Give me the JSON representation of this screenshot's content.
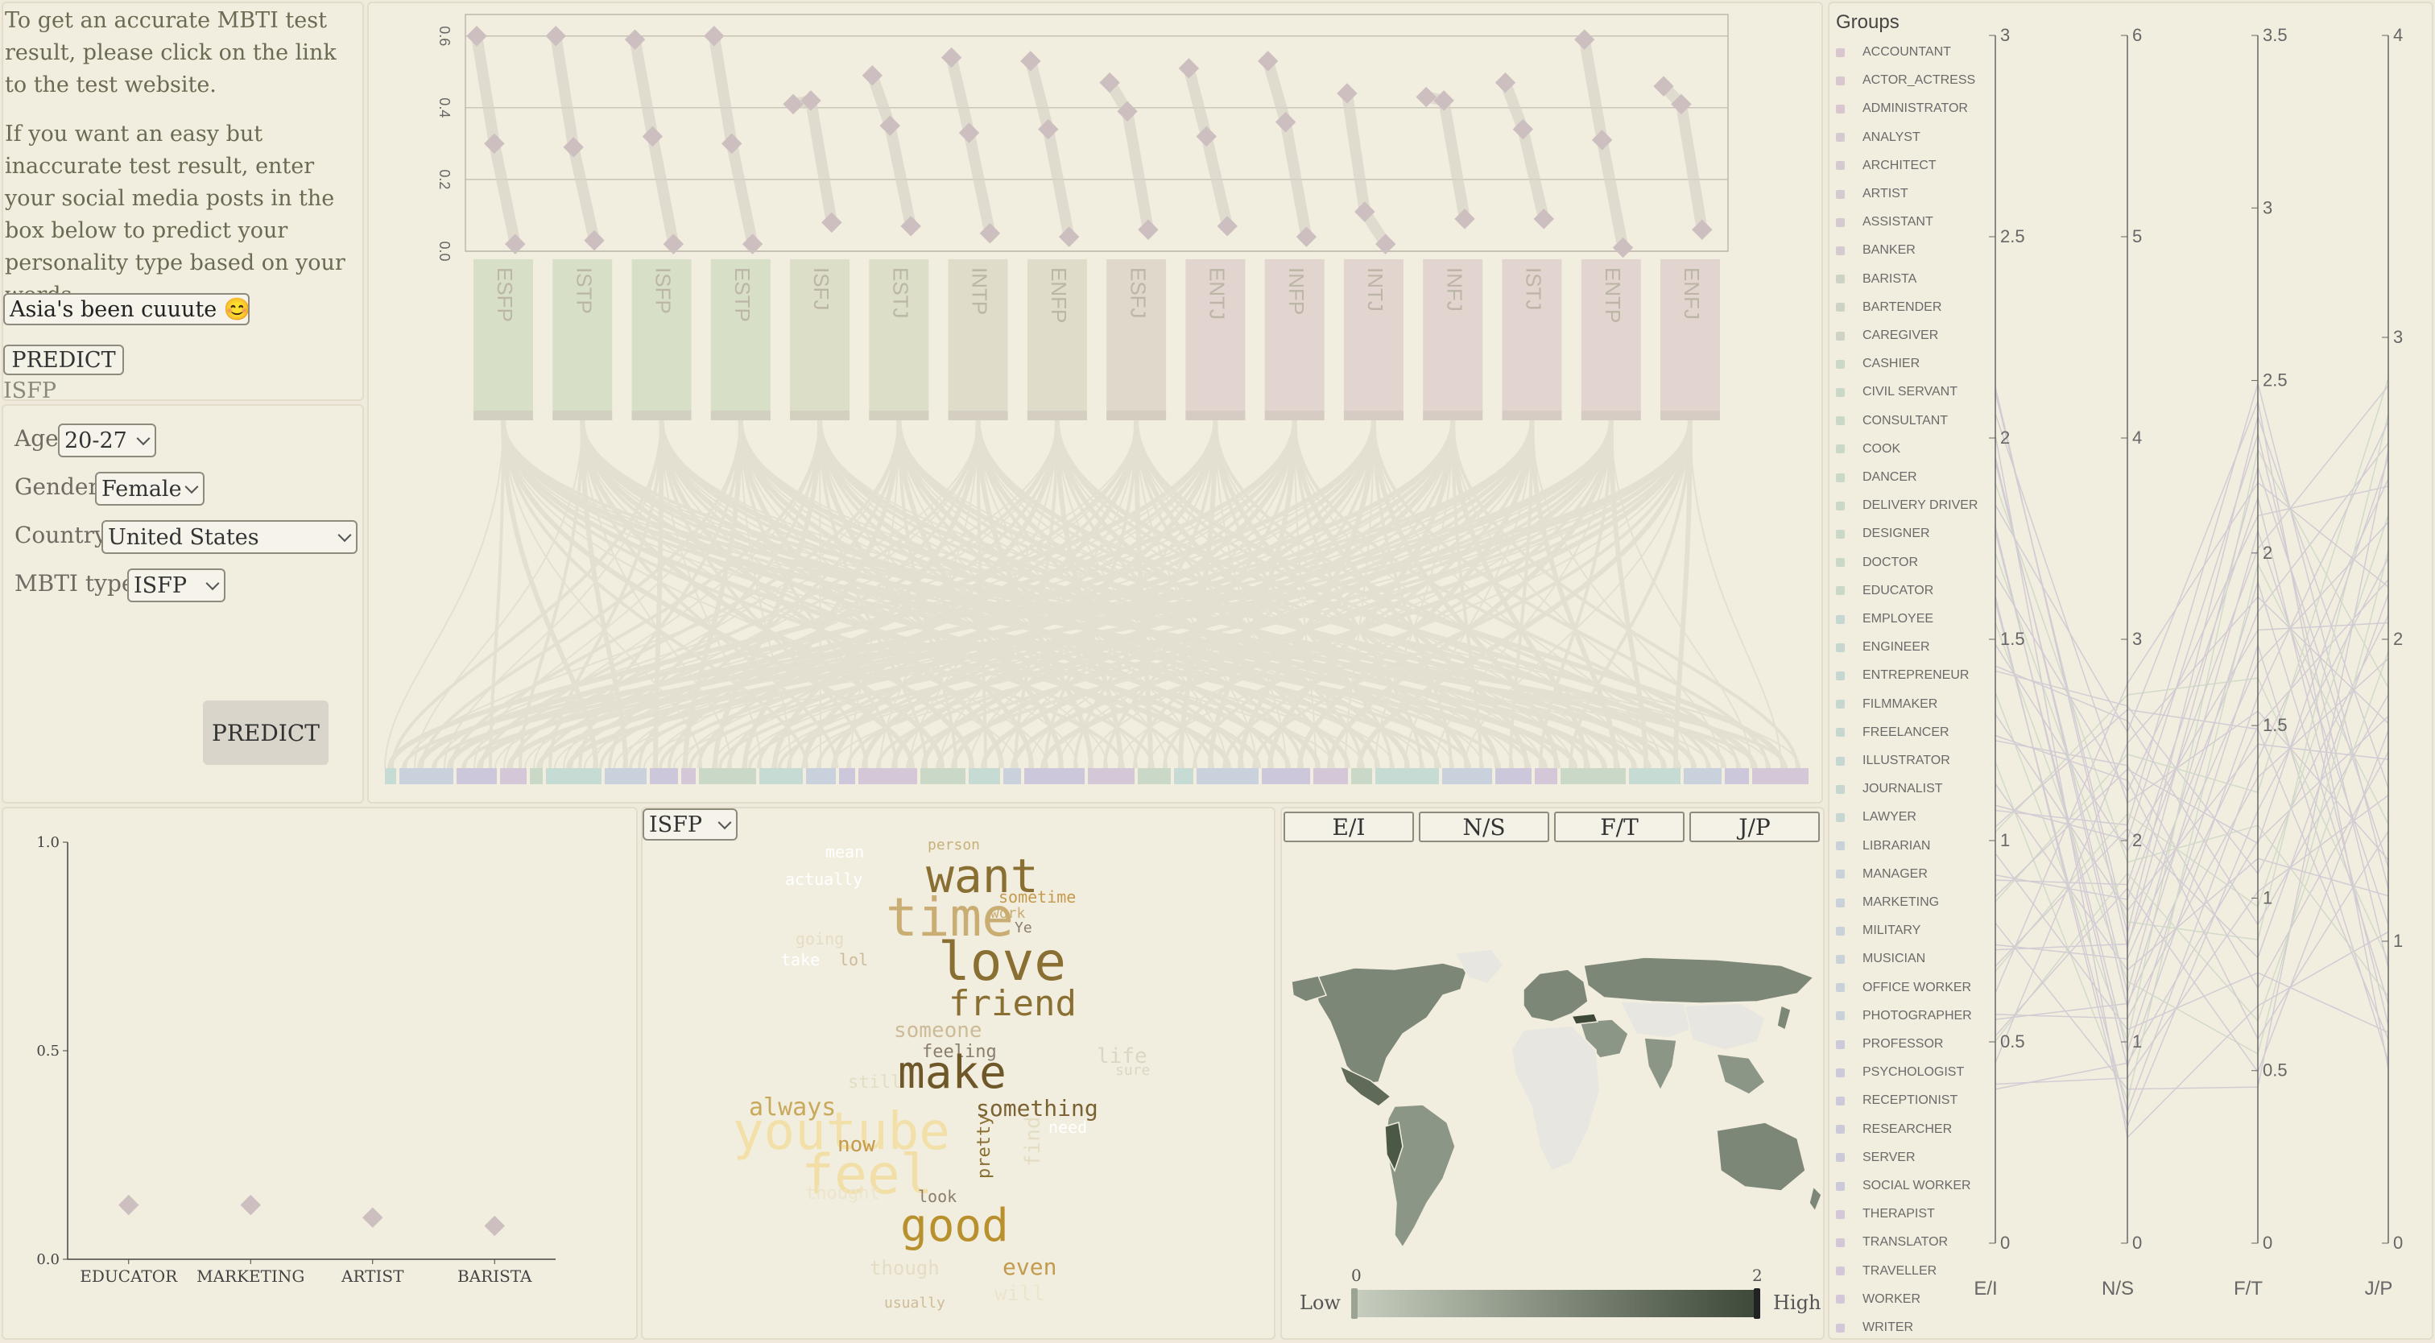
{
  "left_top": {
    "intro1": "To get an accurate MBTI test result,  please click on the link to the test website.",
    "intro2": "If you want an easy but inaccurate test result, enter your social media posts in the box below to predict your personality type based on your words.",
    "post_value": "Asia's been cuuute 😊 se",
    "predict_label": "PREDICT",
    "result": "ISFP"
  },
  "form": {
    "age_label": "Age",
    "age_value": "20-27",
    "gender_label": "Gender",
    "gender_value": "Female",
    "country_label": "Country",
    "country_value": "United States",
    "mbti_label": "MBTI type",
    "mbti_value": "ISFP",
    "predict_label": "PREDICT"
  },
  "sankey": {
    "y_ticks": [
      "0.0",
      "0.2",
      "0.4",
      "0.6"
    ],
    "types": [
      "ESFP",
      "ISTP",
      "ISFP",
      "ESTP",
      "ISFJ",
      "ESTJ",
      "INTP",
      "ENFP",
      "ESFJ",
      "ENTJ",
      "INFP",
      "INTJ",
      "INFJ",
      "ISTJ",
      "ENTP",
      "ENFJ"
    ],
    "type_colors": [
      "#d3dcc3",
      "#d3dcc3",
      "#d3dcc3",
      "#d3dcc3",
      "#d8dac4",
      "#d8dac4",
      "#dcd9c7",
      "#dcd9c7",
      "#ddd4c8",
      "#dfcfcc",
      "#dfcfcc",
      "#dfcfcc",
      "#dfcfcc",
      "#dfcfcc",
      "#dfcfcc",
      "#dfcfcc"
    ],
    "dot_values": [
      [
        0.6,
        0.3,
        0.02
      ],
      [
        0.6,
        0.29,
        0.03
      ],
      [
        0.59,
        0.32,
        0.02
      ],
      [
        0.6,
        0.3,
        0.02
      ],
      [
        0.41,
        0.42,
        0.08
      ],
      [
        0.49,
        0.35,
        0.07
      ],
      [
        0.54,
        0.33,
        0.05
      ],
      [
        0.53,
        0.34,
        0.04
      ],
      [
        0.47,
        0.39,
        0.06
      ],
      [
        0.51,
        0.32,
        0.07
      ],
      [
        0.53,
        0.36,
        0.04
      ],
      [
        0.44,
        0.11,
        0.02
      ],
      [
        0.43,
        0.42,
        0.09
      ],
      [
        0.47,
        0.34,
        0.09
      ],
      [
        0.59,
        0.31,
        0.01
      ],
      [
        0.46,
        0.41,
        0.06
      ]
    ]
  },
  "scatter": {
    "y_ticks": [
      "0.0",
      "0.5",
      "1.0"
    ],
    "categories": [
      "EDUCATOR",
      "MARKETING",
      "ARTIST",
      "BARISTA"
    ],
    "values": [
      0.13,
      0.13,
      0.1,
      0.08
    ]
  },
  "wordcloud": {
    "select_value": "ISFP",
    "words": [
      {
        "t": "want",
        "x": 1150,
        "y": 1105,
        "s": 58,
        "c": "#8a6f33"
      },
      {
        "t": "time",
        "x": 1100,
        "y": 1160,
        "s": 66,
        "c": "#c9ad73"
      },
      {
        "t": "love",
        "x": 1165,
        "y": 1215,
        "s": 66,
        "c": "#8a6f33"
      },
      {
        "t": "friend",
        "x": 1178,
        "y": 1260,
        "s": 44,
        "c": "#8a6f33"
      },
      {
        "t": "someone",
        "x": 1110,
        "y": 1288,
        "s": 26,
        "c": "#cdbb98"
      },
      {
        "t": "feeling",
        "x": 1145,
        "y": 1314,
        "s": 22,
        "c": "#8a7d6c"
      },
      {
        "t": "make",
        "x": 1115,
        "y": 1350,
        "s": 56,
        "c": "#6e5729"
      },
      {
        "t": "something",
        "x": 1212,
        "y": 1385,
        "s": 28,
        "c": "#7b6232"
      },
      {
        "t": "always",
        "x": 930,
        "y": 1385,
        "s": 30,
        "c": "#c8a85a"
      },
      {
        "t": "youtube",
        "x": 910,
        "y": 1425,
        "s": 64,
        "c": "#f2e0a8"
      },
      {
        "t": "feel",
        "x": 995,
        "y": 1480,
        "s": 68,
        "c": "#f1dfa7"
      },
      {
        "t": "now",
        "x": 1040,
        "y": 1430,
        "s": 26,
        "c": "#c39b4f"
      },
      {
        "t": "good",
        "x": 1118,
        "y": 1540,
        "s": 56,
        "c": "#b8912e"
      },
      {
        "t": "even",
        "x": 1245,
        "y": 1582,
        "s": 28,
        "c": "#c39b4f"
      },
      {
        "t": "pretty",
        "x": 1212,
        "y": 1482,
        "s": 22,
        "c": "#8a6f33",
        "r": -90
      },
      {
        "t": "find",
        "x": 1270,
        "y": 1470,
        "s": 26,
        "c": "#e5dcc4",
        "r": -90
      },
      {
        "t": "life",
        "x": 1362,
        "y": 1320,
        "s": 26,
        "c": "#ddd5c3"
      },
      {
        "t": "sure",
        "x": 1385,
        "y": 1335,
        "s": 18,
        "c": "#ddd5c3"
      },
      {
        "t": "sometime",
        "x": 1240,
        "y": 1120,
        "s": 20,
        "c": "#c39b4f"
      },
      {
        "t": "person",
        "x": 1152,
        "y": 1055,
        "s": 18,
        "c": "#c9b07a"
      },
      {
        "t": "actually",
        "x": 975,
        "y": 1098,
        "s": 20,
        "c": "#ffffff"
      },
      {
        "t": "mean",
        "x": 1025,
        "y": 1064,
        "s": 20,
        "c": "#ffffff"
      },
      {
        "t": "work",
        "x": 1230,
        "y": 1140,
        "s": 18,
        "c": "#c9ad73"
      },
      {
        "t": "Ye",
        "x": 1260,
        "y": 1158,
        "s": 18,
        "c": "#8a7d6c"
      },
      {
        "t": "going",
        "x": 988,
        "y": 1172,
        "s": 20,
        "c": "#e5dcc4"
      },
      {
        "t": "take",
        "x": 970,
        "y": 1198,
        "s": 20,
        "c": "#ffffff"
      },
      {
        "t": "lol",
        "x": 1042,
        "y": 1198,
        "s": 20,
        "c": "#cdbb98"
      },
      {
        "t": "still",
        "x": 1053,
        "y": 1352,
        "s": 22,
        "c": "#e5dcc4"
      },
      {
        "t": "thought",
        "x": 1000,
        "y": 1490,
        "s": 22,
        "c": "#ede4cd"
      },
      {
        "t": "look",
        "x": 1140,
        "y": 1492,
        "s": 20,
        "c": "#8a7d6c"
      },
      {
        "t": "though",
        "x": 1080,
        "y": 1582,
        "s": 24,
        "c": "#e5dcc4"
      },
      {
        "t": "need",
        "x": 1302,
        "y": 1406,
        "s": 20,
        "c": "#ffffff"
      },
      {
        "t": "usually",
        "x": 1098,
        "y": 1624,
        "s": 18,
        "c": "#cdbb98"
      },
      {
        "t": "will",
        "x": 1235,
        "y": 1615,
        "s": 26,
        "c": "#ede4cd"
      }
    ]
  },
  "map": {
    "tabs": [
      "E/I",
      "N/S",
      "F/T",
      "J/P"
    ],
    "legend_min": "0",
    "legend_max": "2",
    "legend_low": "Low",
    "legend_high": "High"
  },
  "parallel": {
    "title": "Groups",
    "groups": [
      {
        "name": "ACCOUNTANT",
        "color": "#d9c6cf"
      },
      {
        "name": "ACTOR_ACTRESS",
        "color": "#d9c6cf"
      },
      {
        "name": "ADMINISTRATOR",
        "color": "#d9c6cf"
      },
      {
        "name": "ANALYST",
        "color": "#d4cad0"
      },
      {
        "name": "ARCHITECT",
        "color": "#d4cad0"
      },
      {
        "name": "ARTIST",
        "color": "#d4cad0"
      },
      {
        "name": "ASSISTANT",
        "color": "#d4cad0"
      },
      {
        "name": "BANKER",
        "color": "#d4cad0"
      },
      {
        "name": "BARISTA",
        "color": "#cfd3c6"
      },
      {
        "name": "BARTENDER",
        "color": "#cfd3c6"
      },
      {
        "name": "CAREGIVER",
        "color": "#cfd3c6"
      },
      {
        "name": "CASHIER",
        "color": "#c9d8c7"
      },
      {
        "name": "CIVIL SERVANT",
        "color": "#c9d8c7"
      },
      {
        "name": "CONSULTANT",
        "color": "#c9d8c7"
      },
      {
        "name": "COOK",
        "color": "#c9d8c7"
      },
      {
        "name": "DANCER",
        "color": "#c9d8c7"
      },
      {
        "name": "DELIVERY DRIVER",
        "color": "#c9d8c7"
      },
      {
        "name": "DESIGNER",
        "color": "#c9d8c7"
      },
      {
        "name": "DOCTOR",
        "color": "#c9d8c7"
      },
      {
        "name": "EDUCATOR",
        "color": "#c9d8c7"
      },
      {
        "name": "EMPLOYEE",
        "color": "#c6d7d1"
      },
      {
        "name": "ENGINEER",
        "color": "#c6d7d1"
      },
      {
        "name": "ENTREPRENEUR",
        "color": "#c6d7d1"
      },
      {
        "name": "FILMMAKER",
        "color": "#c6d7d1"
      },
      {
        "name": "FREELANCER",
        "color": "#c6d7d1"
      },
      {
        "name": "ILLUSTRATOR",
        "color": "#c6d7d1"
      },
      {
        "name": "JOURNALIST",
        "color": "#c6d7d1"
      },
      {
        "name": "LAWYER",
        "color": "#c6d7d1"
      },
      {
        "name": "LIBRARIAN",
        "color": "#c9d1d9"
      },
      {
        "name": "MANAGER",
        "color": "#c9d1d9"
      },
      {
        "name": "MARKETING",
        "color": "#c9d1d9"
      },
      {
        "name": "MILITARY",
        "color": "#c9d1d9"
      },
      {
        "name": "MUSICIAN",
        "color": "#c9d1d9"
      },
      {
        "name": "OFFICE WORKER",
        "color": "#c9d1d9"
      },
      {
        "name": "PHOTOGRAPHER",
        "color": "#c9d1d9"
      },
      {
        "name": "PROFESSOR",
        "color": "#ccc9da"
      },
      {
        "name": "PSYCHOLOGIST",
        "color": "#ccc9da"
      },
      {
        "name": "RECEPTIONIST",
        "color": "#ccc9da"
      },
      {
        "name": "RESEARCHER",
        "color": "#ccc9da"
      },
      {
        "name": "SERVER",
        "color": "#ccc9da"
      },
      {
        "name": "SOCIAL WORKER",
        "color": "#ccc9da"
      },
      {
        "name": "THERAPIST",
        "color": "#d3c7d8"
      },
      {
        "name": "TRANSLATOR",
        "color": "#d3c7d8"
      },
      {
        "name": "TRAVELLER",
        "color": "#d3c7d8"
      },
      {
        "name": "WORKER",
        "color": "#d3c7d8"
      },
      {
        "name": "WRITER",
        "color": "#d3c7d8"
      }
    ],
    "axes": [
      {
        "name": "E/I",
        "ticks": [
          "0",
          "0.5",
          "1",
          "1.5",
          "2",
          "2.5",
          "3"
        ],
        "max": 3
      },
      {
        "name": "N/S",
        "ticks": [
          "0",
          "1",
          "2",
          "3",
          "4",
          "5",
          "6"
        ],
        "max": 6
      },
      {
        "name": "F/T",
        "ticks": [
          "0",
          "0.5",
          "1",
          "1.5",
          "2",
          "2.5",
          "3",
          "3.5"
        ],
        "max": 3.5
      },
      {
        "name": "J/P",
        "ticks": [
          "0",
          "1",
          "2",
          "3",
          "4"
        ],
        "max": 4
      }
    ]
  }
}
